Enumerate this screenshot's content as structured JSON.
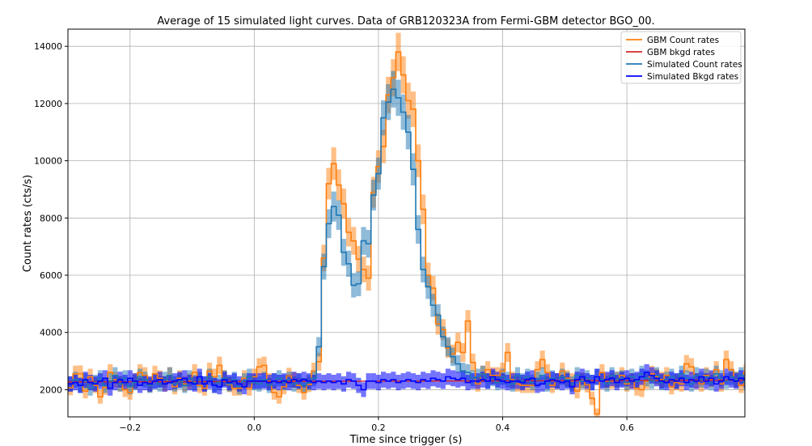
{
  "chart_data": {
    "type": "line",
    "title": "Average of 15 simulated light curves. Data of GRB120323A from Fermi-GBM detector BGO_00.",
    "xlabel": "Time since trigger (s)",
    "ylabel": "Count rates (cts/s)",
    "xlim": [
      -0.3,
      0.79
    ],
    "ylim": [
      1050,
      14600
    ],
    "xticks": [
      -0.2,
      0.0,
      0.2,
      0.4,
      0.6
    ],
    "xtick_labels": [
      "−0.2",
      "0.0",
      "0.2",
      "0.4",
      "0.6"
    ],
    "yticks": [
      2000,
      4000,
      6000,
      8000,
      10000,
      12000,
      14000
    ],
    "ytick_labels": [
      "2000",
      "4000",
      "6000",
      "8000",
      "10000",
      "12000",
      "14000"
    ],
    "grid": true,
    "legend_position": "top-right",
    "bin_width": 0.008,
    "x_start": -0.3,
    "series": [
      {
        "name": "GBM Count rates",
        "kind": "step",
        "color": "#ff7f0e",
        "band_alpha": 0.5,
        "values": [
          2065,
          2550,
          2560,
          1950,
          2450,
          2150,
          1750,
          2080,
          2600,
          2350,
          2200,
          2000,
          1900,
          2300,
          2600,
          2500,
          2170,
          2550,
          2400,
          2200,
          2500,
          2100,
          2400,
          2200,
          2300,
          2600,
          2150,
          2050,
          2650,
          2450,
          2850,
          2400,
          2180,
          2050,
          2050,
          2400,
          2050,
          2450,
          2800,
          2850,
          2300,
          1900,
          1750,
          2100,
          2480,
          2330,
          2150,
          1900,
          2180,
          2650,
          2980,
          6600,
          9200,
          9900,
          9150,
          8500,
          7500,
          7200,
          6560,
          6200,
          5900,
          8900,
          9800,
          10500,
          12300,
          12900,
          13800,
          13000,
          12100,
          11800,
          10000,
          8300,
          6000,
          5550,
          4300,
          4100,
          3450,
          3250,
          3650,
          3300,
          4400,
          2950,
          2200,
          2550,
          2700,
          2500,
          2500,
          2650,
          3300,
          2350,
          2200,
          2150,
          2150,
          2150,
          2700,
          3050,
          2600,
          2150,
          2300,
          2650,
          2400,
          2300,
          1950,
          2320,
          2170,
          1700,
          1150,
          2600,
          2300,
          2300,
          2350,
          2500,
          2200,
          2300,
          2050,
          2000,
          2300,
          2550,
          2450,
          2350,
          2500,
          2100,
          2250,
          2200,
          2900,
          2800,
          2300,
          2200,
          2500,
          2350,
          2700,
          2200,
          3050,
          2700,
          2350,
          2150,
          2600,
          2550,
          2300,
          2550,
          2450,
          2350,
          2050,
          2450,
          2650,
          2350,
          2400,
          2150,
          2250,
          2700,
          2400,
          2100
        ]
      },
      {
        "name": "GBM bkgd rates",
        "kind": "line",
        "color": "#d62728",
        "start": 2270,
        "end": 2330
      },
      {
        "name": "Simulated Count rates",
        "kind": "step",
        "color": "#1f77b4",
        "band_alpha": 0.5,
        "values": [
          2200,
          2350,
          2150,
          2300,
          2050,
          2250,
          2400,
          2150,
          2300,
          2500,
          2200,
          2400,
          2100,
          2250,
          2450,
          2350,
          2150,
          2300,
          2200,
          2350,
          2500,
          2200,
          2300,
          2150,
          2400,
          2250,
          2350,
          2200,
          2450,
          2150,
          2250,
          2400,
          2200,
          2350,
          2100,
          2300,
          2450,
          2250,
          2200,
          2350,
          2150,
          2300,
          2400,
          2250,
          2350,
          2200,
          2300,
          2150,
          2250,
          2400,
          3500,
          6300,
          7800,
          8400,
          8100,
          6800,
          6400,
          5650,
          5700,
          7200,
          7100,
          8800,
          9550,
          11500,
          12050,
          12500,
          12200,
          11700,
          11000,
          9700,
          7600,
          6200,
          5600,
          4950,
          4600,
          3850,
          3500,
          3150,
          2900,
          2650,
          2600,
          2400,
          2450,
          2550,
          2300,
          2400,
          2250,
          2450,
          2350,
          2200,
          2500,
          2300,
          2450,
          2250,
          2350,
          2500,
          2200,
          2400,
          2300,
          2450,
          2350,
          2200,
          2500,
          2300,
          2400,
          2250,
          2450,
          2350,
          2200,
          2500,
          2350,
          2400,
          2250,
          2450,
          2300,
          2550,
          2400,
          2300,
          2500,
          2250,
          2350,
          2450,
          2300,
          2550,
          2400,
          2200,
          2500,
          2350,
          2450,
          2250,
          2550,
          2400,
          2300,
          2450,
          2350,
          2500,
          2250,
          2400,
          2350,
          2550,
          2300,
          2450,
          2400,
          2250,
          2500,
          2350,
          2400,
          2300,
          2450,
          2350,
          2400,
          2300
        ]
      },
      {
        "name": "Simulated Bkgd rates",
        "kind": "step",
        "color": "#0000ff",
        "band_alpha": 0.55,
        "values": [
          2200,
          2250,
          2150,
          2350,
          2250,
          2200,
          2300,
          2400,
          2050,
          2250,
          2350,
          2250,
          2400,
          2300,
          2150,
          2250,
          2200,
          2300,
          2350,
          2200,
          2250,
          2300,
          2350,
          2400,
          2250,
          2200,
          2450,
          2200,
          2300,
          2150,
          2100,
          2350,
          2250,
          2300,
          2200,
          2100,
          2300,
          2300,
          2300,
          2300,
          2250,
          2300,
          2250,
          2300,
          2250,
          2350,
          2300,
          2350,
          2300,
          2250,
          2300,
          2250,
          2300,
          2250,
          2300,
          2200,
          2350,
          2300,
          2150,
          2000,
          2300,
          2300,
          2250,
          2350,
          2300,
          2350,
          2250,
          2300,
          2350,
          2300,
          2250,
          2350,
          2300,
          2400,
          2350,
          2300,
          2450,
          2400,
          2350,
          2400,
          2250,
          2300,
          2300,
          2350,
          2300,
          2450,
          2350,
          2300,
          2250,
          2300,
          2300,
          2250,
          2350,
          2400,
          2150,
          2200,
          2300,
          2350,
          2300,
          2250,
          2300,
          2100,
          2350,
          2450,
          2300,
          2250,
          2450,
          2300,
          2350,
          2400,
          2250,
          2350,
          2400,
          2300,
          2350,
          2450,
          2600,
          2500,
          2400,
          2300,
          2250,
          2350,
          2300,
          2400,
          2250,
          2350,
          2300,
          2450,
          2300,
          2400,
          2200,
          2300,
          2450,
          2350,
          2300,
          2400,
          2350,
          2300,
          2050,
          2250,
          2300,
          2450,
          2300,
          2350,
          2250,
          2400,
          2200,
          2300,
          2350,
          2250,
          2300,
          2400
        ]
      }
    ]
  }
}
